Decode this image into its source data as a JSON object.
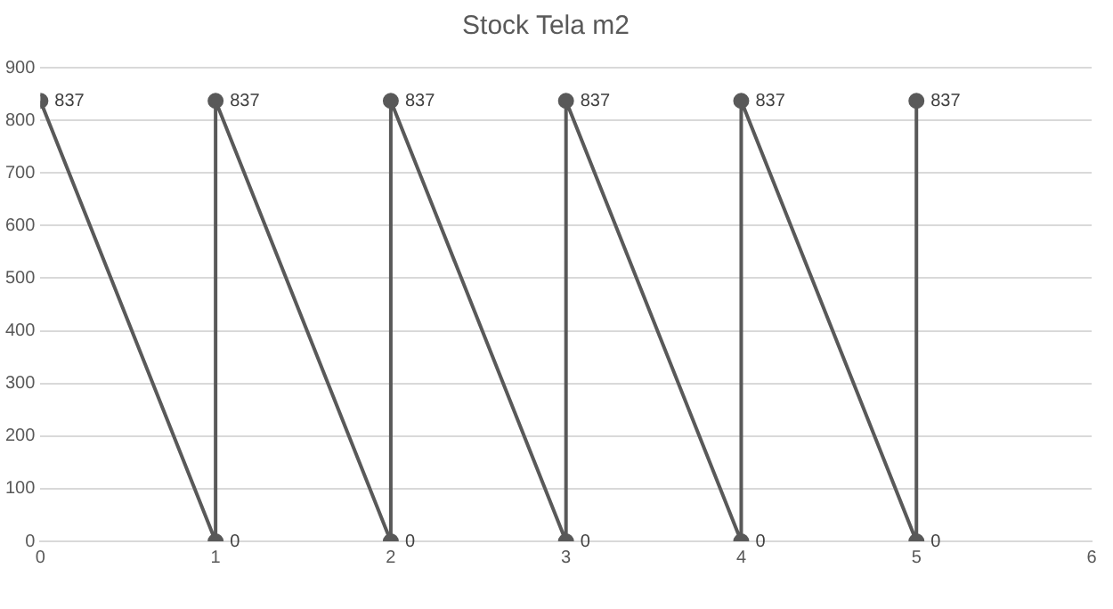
{
  "chart_data": {
    "type": "line",
    "title": "Stock Tela m2",
    "x": [
      0,
      1,
      1,
      2,
      2,
      3,
      3,
      4,
      4,
      5,
      5
    ],
    "series": [
      {
        "color": "#595959",
        "values": [
          837,
          0,
          837,
          0,
          837,
          0,
          837,
          0,
          837,
          0,
          837
        ]
      }
    ],
    "xlim": [
      0,
      6
    ],
    "xticks": [
      0,
      1,
      2,
      3,
      4,
      5,
      6
    ],
    "ylim": [
      0,
      900
    ],
    "yticks": [
      0,
      100,
      200,
      300,
      400,
      500,
      600,
      700,
      800,
      900
    ],
    "grid": "y",
    "legend": false,
    "marker": "circle",
    "line_style": "solid",
    "data_labels": true
  }
}
